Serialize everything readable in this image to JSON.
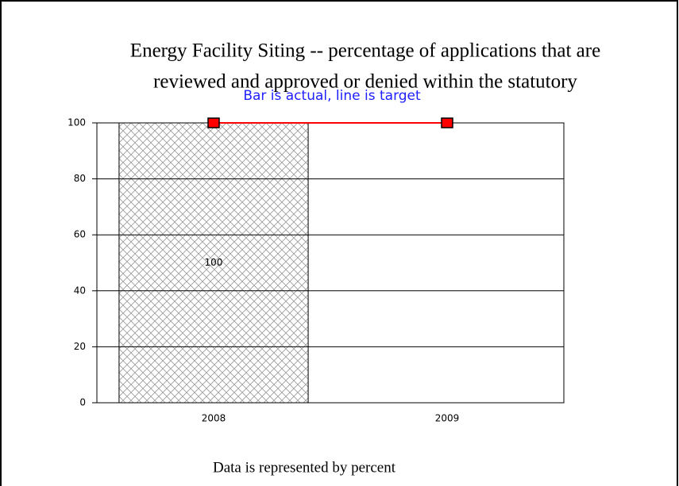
{
  "chart_data": {
    "type": "bar",
    "title": [
      "Energy Facility Siting -- percentage of applications that are",
      "reviewed and approved or denied within the statutory"
    ],
    "subtitle": "Bar is actual, line is target",
    "note": "Data is represented by percent",
    "categories": [
      "2008",
      "2009"
    ],
    "series": [
      {
        "type": "bar",
        "color": "#999999",
        "values": [
          100,
          null
        ]
      },
      {
        "type": "line",
        "color": "#ff0000",
        "marker_color": "#ff0000",
        "values": [
          100,
          100
        ]
      }
    ],
    "ylim": [
      0,
      100
    ],
    "yticks": [
      0,
      20,
      40,
      60,
      80,
      100
    ],
    "grid": true
  }
}
